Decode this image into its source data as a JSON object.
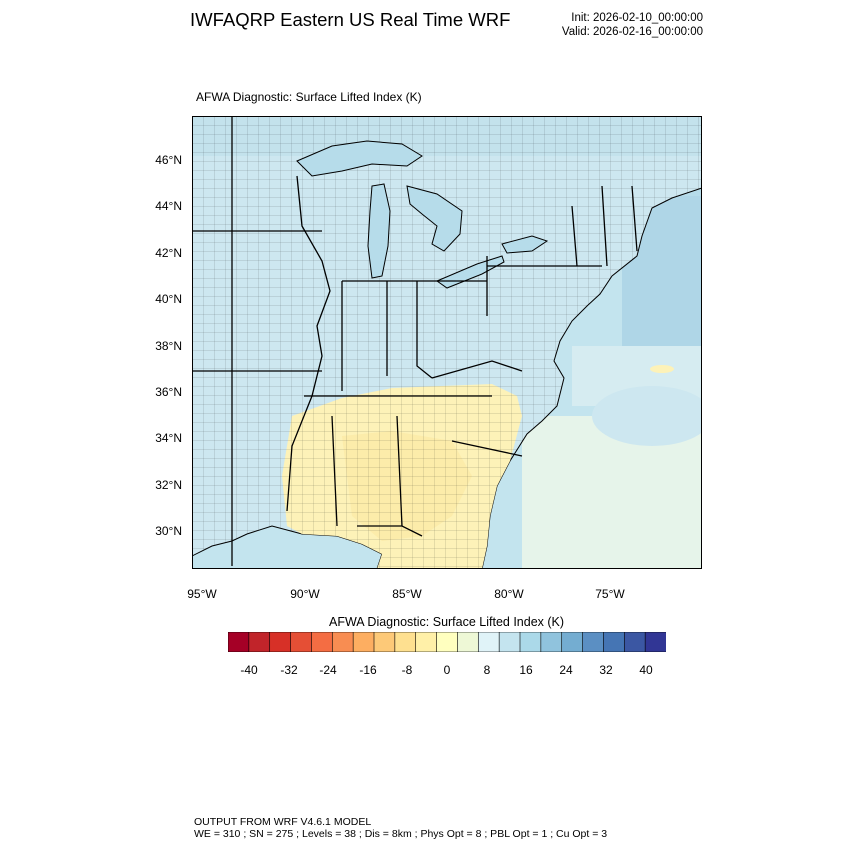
{
  "header": {
    "title": "IWFAQRP Eastern US Real Time WRF",
    "init": "Init: 2026-02-10_00:00:00",
    "valid": "Valid: 2026-02-16_00:00:00"
  },
  "map": {
    "field_title": "AFWA Diagnostic: Surface Lifted Index   (K)",
    "lat_labels": [
      "46°N",
      "44°N",
      "42°N",
      "40°N",
      "38°N",
      "36°N",
      "34°N",
      "32°N",
      "30°N"
    ],
    "lon_labels": [
      "95°W",
      "90°W",
      "85°W",
      "80°W",
      "75°W"
    ],
    "colors": {
      "ocean": "#c3e4ee",
      "land_cool": "#cde7f0",
      "land_warm": "#fdf2b8",
      "boundary": "#000000"
    }
  },
  "colorbar": {
    "title": "AFWA Diagnostic: Surface Lifted Index  (K)",
    "tick_labels": [
      "-40",
      "-32",
      "-24",
      "-16",
      "-8",
      "0",
      "8",
      "16",
      "24",
      "32",
      "40"
    ],
    "colors": [
      "#a50026",
      "#c1242a",
      "#d73027",
      "#e54f35",
      "#f46d43",
      "#f88d52",
      "#fdae61",
      "#fdc978",
      "#fee090",
      "#fff0a8",
      "#ffffbf",
      "#eef8d6",
      "#e0f3f8",
      "#c4e4ef",
      "#abd9e9",
      "#90c3dd",
      "#74add1",
      "#5b8fc3",
      "#4575b4",
      "#3b57a3",
      "#313695"
    ]
  },
  "footer": {
    "line1": "OUTPUT FROM WRF V4.6.1 MODEL",
    "line2": "WE = 310 ; SN = 275 ; Levels = 38 ; Dis = 8km ; Phys Opt = 8 ; PBL Opt = 1 ; Cu Opt = 3"
  }
}
